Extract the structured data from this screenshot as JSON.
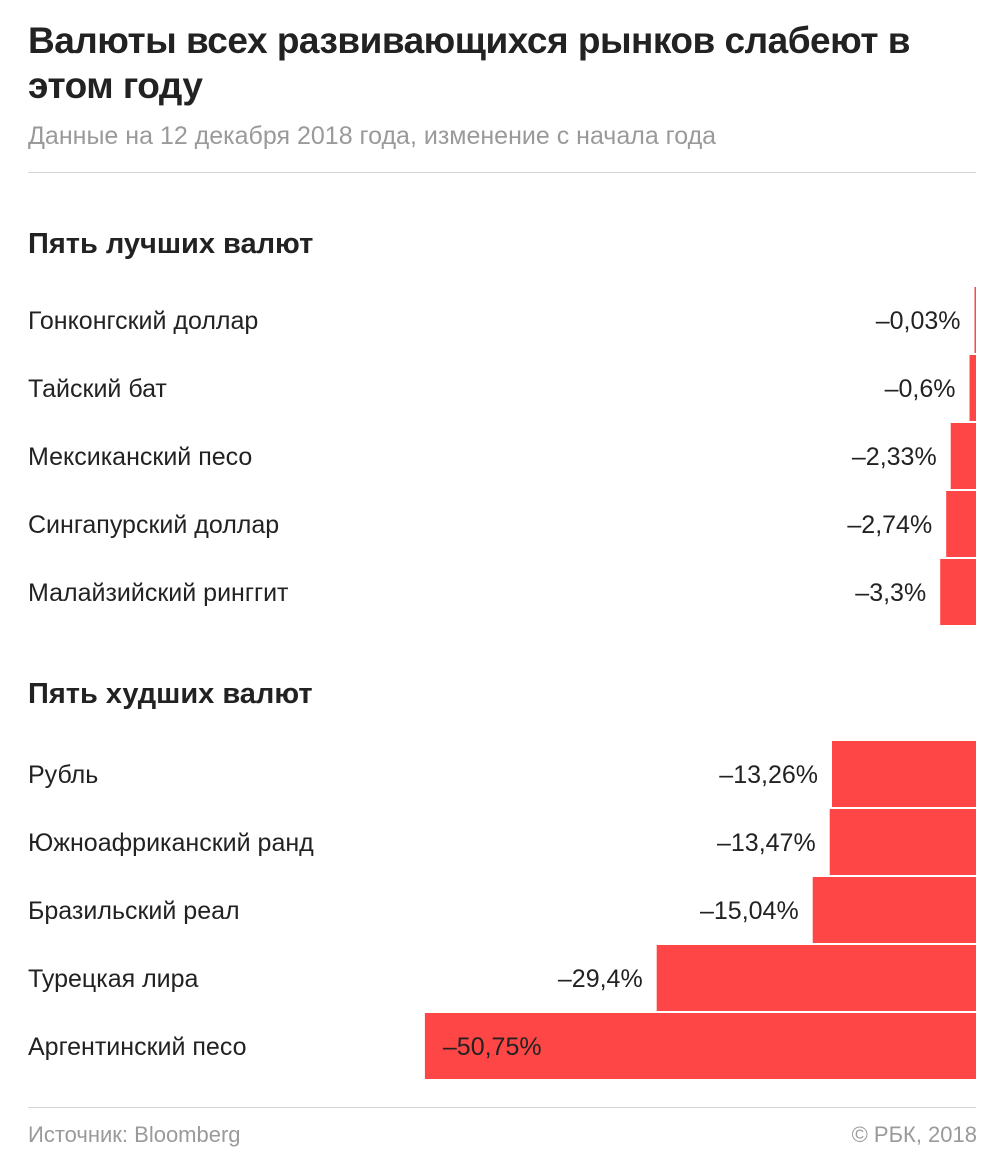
{
  "header": {
    "title": "Валюты всех развивающихся рынков слабеют в этом году",
    "subtitle": "Данные на 12 декабря 2018 года, изменение с начала года"
  },
  "footer": {
    "source": "Источник: Bloomberg",
    "copyright": "© РБК, 2018"
  },
  "colors": {
    "bar": "#ff4646",
    "text": "#222222",
    "muted": "#9a9a9a"
  },
  "chart_data": {
    "type": "bar",
    "orientation": "horizontal",
    "unit": "%",
    "groups": [
      {
        "title": "Пять лучших валют",
        "categories": [
          "Гонконгский доллар",
          "Тайский бат",
          "Мексиканский песо",
          "Сингапурский доллар",
          "Малайзийский ринггит"
        ],
        "values": [
          -0.03,
          -0.6,
          -2.33,
          -2.74,
          -3.3
        ],
        "labels": [
          "–0,03%",
          "–0,6%",
          "–2,33%",
          "–2,74%",
          "–3,3%"
        ]
      },
      {
        "title": "Пять худших валют",
        "categories": [
          "Рубль",
          "Южноафриканский ранд",
          "Бразильский реал",
          "Турецкая лира",
          "Аргентинский песо"
        ],
        "values": [
          -13.26,
          -13.47,
          -15.04,
          -29.4,
          -50.75
        ],
        "labels": [
          "–13,26%",
          "–13,47%",
          "–15,04%",
          "–29,4%",
          "–50,75%"
        ]
      }
    ]
  }
}
